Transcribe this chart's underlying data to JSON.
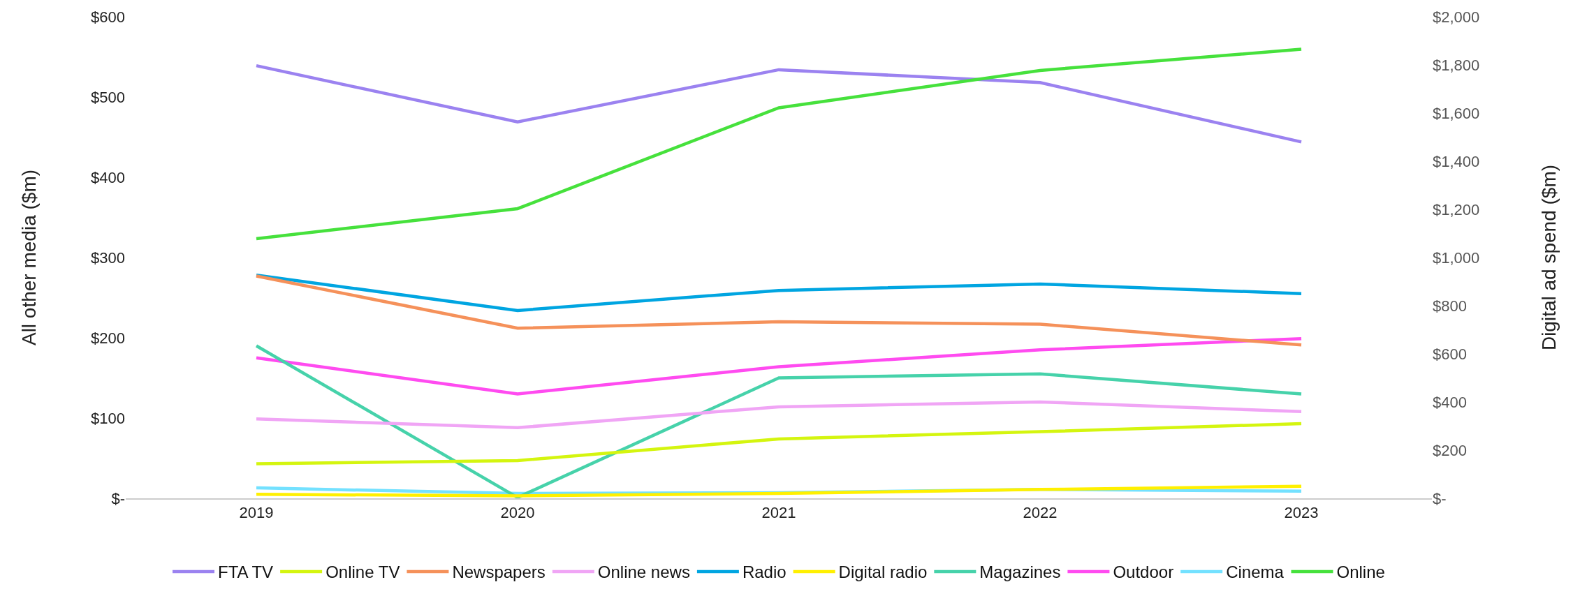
{
  "chart_data": {
    "type": "line",
    "ylabel": "All other media ($m)",
    "y2label": "Digital ad spend ($m)",
    "categories": [
      "2019",
      "2020",
      "2021",
      "2022",
      "2023"
    ],
    "series": [
      {
        "name": "FTA TV",
        "color": "#9b82f0",
        "values": [
          539,
          469,
          534,
          518,
          444
        ]
      },
      {
        "name": "Online TV",
        "color": "#d4f50f",
        "values": [
          43,
          47,
          74,
          83,
          93
        ]
      },
      {
        "name": "Newspapers",
        "color": "#f5915a",
        "values": [
          277,
          212,
          220,
          217,
          191
        ]
      },
      {
        "name": "Online news",
        "color": "#f0a5f5",
        "values": [
          99,
          88,
          114,
          120,
          108
        ]
      },
      {
        "name": "Radio",
        "color": "#00a5e1",
        "values": [
          278,
          234,
          259,
          267,
          255
        ]
      },
      {
        "name": "Digital radio",
        "color": "#fff000",
        "values": [
          5,
          3,
          6,
          11,
          15
        ]
      },
      {
        "name": "Magazines",
        "color": "#46d2aa",
        "values": [
          190,
          1,
          150,
          155,
          130
        ]
      },
      {
        "name": "Outdoor",
        "color": "#ff4bf0",
        "values": [
          175,
          130,
          164,
          185,
          199
        ]
      },
      {
        "name": "Cinema",
        "color": "#73e1ff",
        "values": [
          13,
          6,
          7,
          11,
          9
        ]
      },
      {
        "name": "Online",
        "color": "#46e13c",
        "axis": "y2",
        "values": [
          1078,
          1203,
          1622,
          1777,
          1865
        ]
      }
    ],
    "ylim": [
      0,
      600
    ],
    "yticks": [
      {
        "value": 0,
        "label": "$-"
      },
      {
        "value": 100,
        "label": "$100"
      },
      {
        "value": 200,
        "label": "$200"
      },
      {
        "value": 300,
        "label": "$300"
      },
      {
        "value": 400,
        "label": "$400"
      },
      {
        "value": 500,
        "label": "$500"
      },
      {
        "value": 600,
        "label": "$600"
      }
    ],
    "y2lim": [
      0,
      2000
    ],
    "y2ticks": [
      {
        "value": 0,
        "label": "$-"
      },
      {
        "value": 200,
        "label": "$200"
      },
      {
        "value": 400,
        "label": "$400"
      },
      {
        "value": 600,
        "label": "$600"
      },
      {
        "value": 800,
        "label": "$800"
      },
      {
        "value": 1000,
        "label": "$1,000"
      },
      {
        "value": 1200,
        "label": "$1,200"
      },
      {
        "value": 1400,
        "label": "$1,400"
      },
      {
        "value": 1600,
        "label": "$1,600"
      },
      {
        "value": 1800,
        "label": "$1,800"
      },
      {
        "value": 2000,
        "label": "$2,000"
      }
    ],
    "legend": "bottom",
    "marker": "none",
    "line_style": "solid"
  }
}
